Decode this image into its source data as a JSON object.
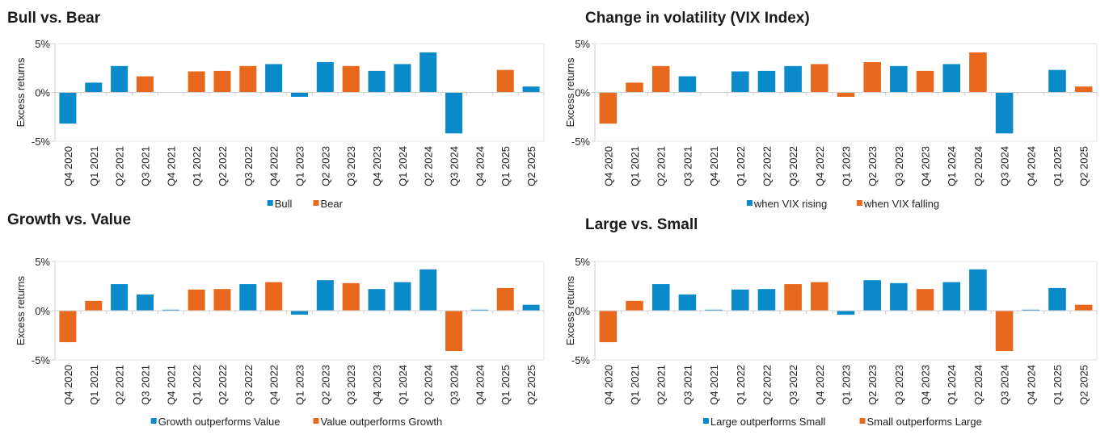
{
  "colors": {
    "series0": "#0a8ac9",
    "series1": "#e8691e",
    "axis": "#d0d0d0"
  },
  "chart_data": [
    {
      "type": "bar",
      "title": "Bull vs. Bear",
      "ylabel": "Excess returns",
      "ylim": [
        -5,
        5
      ],
      "yticks": [
        "5%",
        "0%",
        "-5%"
      ],
      "ytick_values": [
        5,
        0,
        -5
      ],
      "grid": false,
      "legend": "bottom",
      "categories": [
        "Q4 2020",
        "Q1 2021",
        "Q2 2021",
        "Q3 2021",
        "Q4 2021",
        "Q1 2022",
        "Q2 2022",
        "Q3 2022",
        "Q4 2022",
        "Q1 2023",
        "Q2 2023",
        "Q3 2023",
        "Q4 2023",
        "Q1 2024",
        "Q2 2024",
        "Q3 2024",
        "Q4 2024",
        "Q1 2025",
        "Q2 2025"
      ],
      "series": [
        {
          "name": "Bull",
          "values": [
            -3.2,
            1.0,
            2.7,
            null,
            0,
            null,
            null,
            null,
            2.9,
            -0.45,
            3.1,
            null,
            2.2,
            2.9,
            4.1,
            -4.2,
            0,
            null,
            0.6
          ]
        },
        {
          "name": "Bear",
          "values": [
            null,
            null,
            null,
            1.65,
            null,
            2.15,
            2.2,
            2.7,
            null,
            null,
            null,
            2.7,
            null,
            null,
            null,
            null,
            null,
            2.3,
            null
          ]
        }
      ]
    },
    {
      "type": "bar",
      "title": "Change in volatility (VIX Index)",
      "ylabel": "Excess returns",
      "ylim": [
        -5,
        5
      ],
      "yticks": [
        "5%",
        "0%",
        "-5%"
      ],
      "ytick_values": [
        5,
        0,
        -5
      ],
      "grid": false,
      "legend": "bottom",
      "categories": [
        "Q4 2020",
        "Q1 2021",
        "Q2 2021",
        "Q3 2021",
        "Q4 2021",
        "Q1 2022",
        "Q2 2022",
        "Q3 2022",
        "Q4 2022",
        "Q1 2023",
        "Q2 2023",
        "Q3 2023",
        "Q4 2023",
        "Q1 2024",
        "Q2 2024",
        "Q3 2024",
        "Q4 2024",
        "Q1 2025",
        "Q2 2025"
      ],
      "series": [
        {
          "name": "when VIX rising",
          "values": [
            null,
            null,
            null,
            1.65,
            0,
            2.15,
            2.2,
            2.7,
            null,
            null,
            null,
            2.7,
            null,
            2.9,
            null,
            -4.2,
            0,
            2.3,
            null
          ]
        },
        {
          "name": "when VIX falling",
          "values": [
            -3.2,
            1.0,
            2.7,
            null,
            null,
            null,
            null,
            null,
            2.9,
            -0.45,
            3.1,
            null,
            2.2,
            null,
            4.1,
            null,
            null,
            null,
            0.6
          ]
        }
      ]
    },
    {
      "type": "bar",
      "title": "Growth vs. Value",
      "ylabel": "Excess returns",
      "ylim": [
        -5,
        5
      ],
      "yticks": [
        "5%",
        "0%",
        "-5%"
      ],
      "ytick_values": [
        5,
        0,
        -5
      ],
      "grid": false,
      "legend": "bottom",
      "categories": [
        "Q4 2020",
        "Q1 2021",
        "Q2 2021",
        "Q3 2021",
        "Q4 2021",
        "Q1 2022",
        "Q2 2022",
        "Q3 2022",
        "Q4 2022",
        "Q1 2023",
        "Q2 2023",
        "Q3 2023",
        "Q4 2023",
        "Q1 2024",
        "Q2 2024",
        "Q3 2024",
        "Q4 2024",
        "Q1 2025",
        "Q2 2025"
      ],
      "series": [
        {
          "name": "Growth outperforms Value",
          "values": [
            null,
            null,
            2.7,
            1.65,
            0.1,
            null,
            null,
            2.7,
            null,
            -0.4,
            3.1,
            null,
            2.2,
            2.9,
            4.2,
            null,
            0.1,
            null,
            0.6
          ]
        },
        {
          "name": "Value outperforms Growth",
          "values": [
            -3.2,
            1.0,
            null,
            null,
            null,
            2.15,
            2.2,
            null,
            2.9,
            null,
            null,
            2.8,
            null,
            null,
            null,
            -4.1,
            null,
            2.3,
            null
          ]
        }
      ]
    },
    {
      "type": "bar",
      "title": "Large vs. Small",
      "ylabel": "Excess returns",
      "ylim": [
        -5,
        5
      ],
      "yticks": [
        "5%",
        "0%",
        "-5%"
      ],
      "ytick_values": [
        5,
        0,
        -5
      ],
      "grid": false,
      "legend": "bottom",
      "categories": [
        "Q4 2020",
        "Q1 2021",
        "Q2 2021",
        "Q3 2021",
        "Q4 2021",
        "Q1 2022",
        "Q2 2022",
        "Q3 2022",
        "Q4 2022",
        "Q1 2023",
        "Q2 2023",
        "Q3 2023",
        "Q4 2023",
        "Q1 2024",
        "Q2 2024",
        "Q3 2024",
        "Q4 2024",
        "Q1 2025",
        "Q2 2025"
      ],
      "series": [
        {
          "name": "Large outperforms Small",
          "values": [
            null,
            null,
            2.7,
            1.65,
            0.1,
            2.15,
            2.2,
            null,
            null,
            -0.4,
            3.1,
            2.8,
            null,
            2.9,
            4.2,
            null,
            0.1,
            2.3,
            null
          ]
        },
        {
          "name": "Small outperforms Large",
          "values": [
            -3.2,
            1.0,
            null,
            null,
            null,
            null,
            null,
            2.7,
            2.9,
            null,
            null,
            null,
            2.2,
            null,
            null,
            -4.1,
            null,
            null,
            0.6
          ]
        }
      ]
    }
  ]
}
